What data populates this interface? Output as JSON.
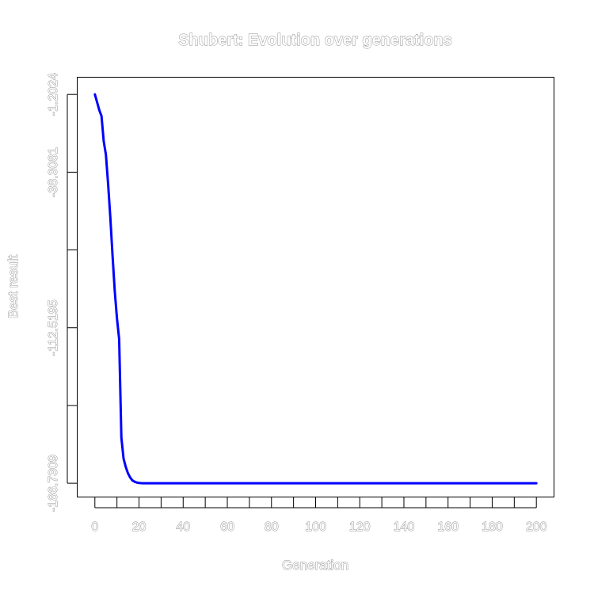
{
  "chart_data": {
    "type": "line",
    "title": "Shubert: Evolution over generations",
    "xlabel": "Generation",
    "ylabel": "Best result",
    "xlim": [
      -8,
      208
    ],
    "ylim": [
      -193.3,
      7.0
    ],
    "x_ticks": [
      0,
      10,
      20,
      30,
      40,
      50,
      60,
      70,
      80,
      90,
      100,
      110,
      120,
      130,
      140,
      150,
      160,
      170,
      180,
      190,
      200
    ],
    "x_tick_labels": [
      {
        "value": 0,
        "label": "0"
      },
      {
        "value": 20,
        "label": "20"
      },
      {
        "value": 40,
        "label": "40"
      },
      {
        "value": 60,
        "label": "60"
      },
      {
        "value": 80,
        "label": "80"
      },
      {
        "value": 100,
        "label": "100"
      },
      {
        "value": 120,
        "label": "120"
      },
      {
        "value": 140,
        "label": "140"
      },
      {
        "value": 160,
        "label": "160"
      },
      {
        "value": 180,
        "label": "180"
      },
      {
        "value": 200,
        "label": "200"
      }
    ],
    "y_ticks": [
      -1.2024,
      -38.3081,
      -75.4138,
      -112.5195,
      -149.6252,
      -186.7309
    ],
    "y_tick_labels": [
      {
        "value": -1.2024,
        "label": "-1.2024"
      },
      {
        "value": -38.3081,
        "label": "-38.3081"
      },
      {
        "value": -112.5195,
        "label": "-112.5195"
      },
      {
        "value": -186.7309,
        "label": "-186.7309"
      }
    ],
    "grid": false,
    "legend": null,
    "series": [
      {
        "color": "#0000ff",
        "x": [
          0,
          1,
          2,
          3,
          4,
          5,
          6,
          7,
          8,
          9,
          10,
          11,
          12,
          13,
          14,
          15,
          16,
          17,
          18,
          19,
          20,
          21,
          22,
          23,
          24,
          25,
          26,
          27,
          28,
          29,
          30,
          40,
          60,
          80,
          100,
          120,
          140,
          160,
          180,
          200
        ],
        "y": [
          -1.2,
          -4.9,
          -8.7,
          -11.5,
          -23.5,
          -30.0,
          -44.0,
          -60.0,
          -78.0,
          -95.0,
          -108.0,
          -118.0,
          -165.0,
          -175.0,
          -179.0,
          -182.0,
          -184.0,
          -185.4,
          -186.0,
          -186.4,
          -186.6,
          -186.7,
          -186.73,
          -186.73,
          -186.73,
          -186.73,
          -186.73,
          -186.73,
          -186.73,
          -186.73,
          -186.73,
          -186.73,
          -186.73,
          -186.73,
          -186.73,
          -186.73,
          -186.73,
          -186.73,
          -186.73,
          -186.73
        ]
      }
    ]
  }
}
